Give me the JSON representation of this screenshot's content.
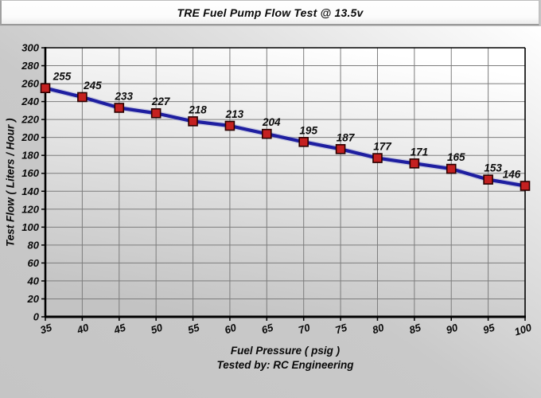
{
  "header": {
    "title": "TRE Fuel Pump Flow Test @ 13.5v"
  },
  "chart_data": {
    "type": "line",
    "title": "TRE Fuel Pump Flow Test @ 13.5v",
    "xlabel": "Fuel Pressure ( psig )",
    "ylabel": "Test Flow ( Liters / Hour )",
    "footer": "Tested by: RC Engineering",
    "x": [
      35,
      40,
      45,
      50,
      55,
      60,
      65,
      70,
      75,
      80,
      85,
      90,
      95,
      100
    ],
    "values": [
      255,
      245,
      233,
      227,
      218,
      213,
      204,
      195,
      187,
      177,
      171,
      165,
      153,
      146
    ],
    "data_labels_visible": true,
    "xlim": [
      35,
      100
    ],
    "ylim": [
      0,
      300
    ],
    "x_ticks": [
      35,
      40,
      45,
      50,
      55,
      60,
      65,
      70,
      75,
      80,
      85,
      90,
      95,
      100
    ],
    "y_ticks": [
      0,
      20,
      40,
      60,
      80,
      100,
      120,
      140,
      160,
      180,
      200,
      220,
      240,
      260,
      280,
      300
    ],
    "grid": true,
    "legend_position": "none",
    "colors": {
      "line": "#1e1ea0",
      "line_halo": "#a9aed6",
      "marker_fill": "#c42020",
      "marker_border": "#2a0000",
      "grid": "#7d7d7d",
      "axis": "#000000",
      "tick_label": "#0a0a0a",
      "data_label": "#0d0d0d",
      "plot_bg_top": "#ffffff",
      "plot_bg_bottom": "#c3c3c3",
      "page_bg": "#c6c6c6",
      "title_bg": "#fcfcfc"
    }
  }
}
